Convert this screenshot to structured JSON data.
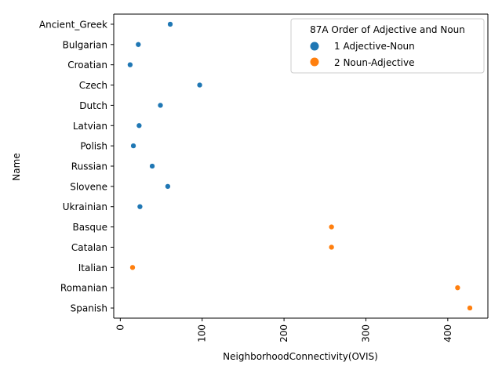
{
  "chart_data": {
    "type": "scatter",
    "xlabel": "NeighborhoodConnectivity(OVIS)",
    "ylabel": "Name",
    "xlim": [
      -8,
      449
    ],
    "x_ticks": [
      0,
      100,
      200,
      300,
      400
    ],
    "x_tick_labels": [
      "0",
      "100",
      "200",
      "300",
      "400"
    ],
    "x_tick_rotation": "vertical",
    "categories": [
      "Ancient_Greek",
      "Bulgarian",
      "Croatian",
      "Czech",
      "Dutch",
      "Latvian",
      "Polish",
      "Russian",
      "Slovene",
      "Ukrainian",
      "Basque",
      "Catalan",
      "Italian",
      "Romanian",
      "Spanish"
    ],
    "grid": false,
    "legend": {
      "title": "87A Order of Adjective and Noun",
      "placement": "top-right",
      "entries": [
        {
          "label": "1 Adjective-Noun",
          "color": "#1f77b4"
        },
        {
          "label": "2 Noun-Adjective",
          "color": "#ff7f0e"
        }
      ]
    },
    "series": [
      {
        "name": "1 Adjective-Noun",
        "color": "#1f77b4",
        "points": [
          {
            "name": "Ancient_Greek",
            "x": 61
          },
          {
            "name": "Bulgarian",
            "x": 22
          },
          {
            "name": "Croatian",
            "x": 12
          },
          {
            "name": "Czech",
            "x": 97
          },
          {
            "name": "Dutch",
            "x": 49
          },
          {
            "name": "Latvian",
            "x": 23
          },
          {
            "name": "Polish",
            "x": 16
          },
          {
            "name": "Russian",
            "x": 39
          },
          {
            "name": "Slovene",
            "x": 58
          },
          {
            "name": "Ukrainian",
            "x": 24
          }
        ]
      },
      {
        "name": "2 Noun-Adjective",
        "color": "#ff7f0e",
        "points": [
          {
            "name": "Basque",
            "x": 258
          },
          {
            "name": "Catalan",
            "x": 258
          },
          {
            "name": "Italian",
            "x": 15
          },
          {
            "name": "Romanian",
            "x": 412
          },
          {
            "name": "Spanish",
            "x": 427
          }
        ]
      }
    ]
  }
}
